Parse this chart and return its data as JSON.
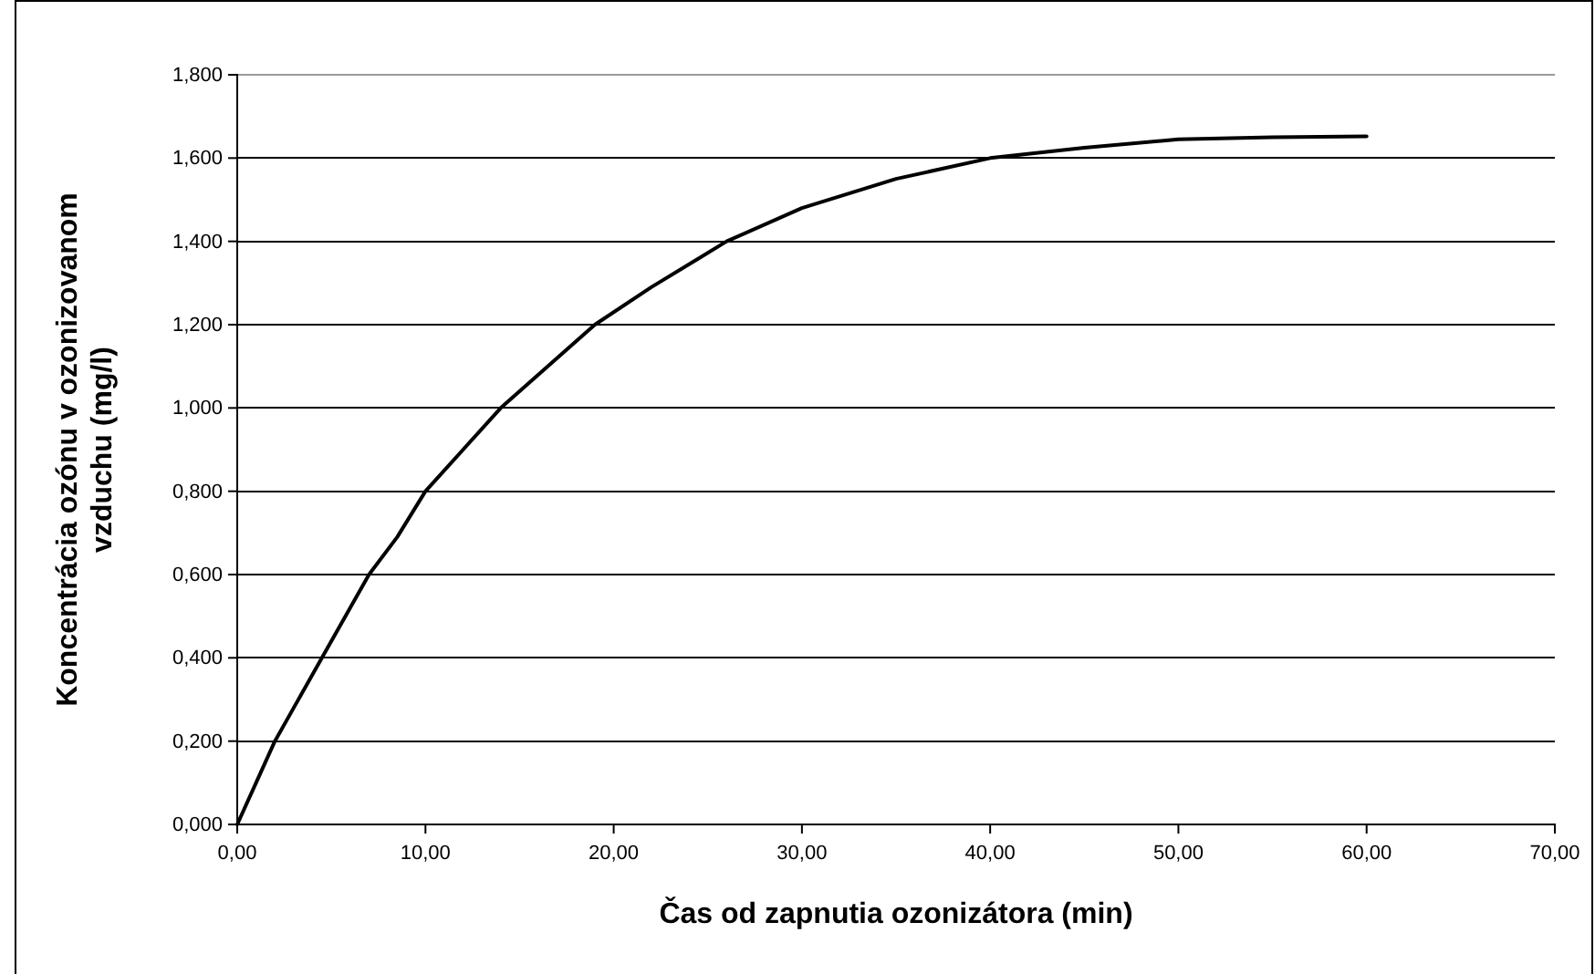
{
  "chart_data": {
    "type": "line",
    "xlabel": "Čas od zapnutia ozonizátora (min)",
    "ylabel": "Koncentrácia ozónu v ozonizovanom vzduchu (mg/l)",
    "x": [
      0,
      1,
      2,
      3,
      4.5,
      6,
      7,
      8.5,
      10,
      12,
      14,
      16,
      19,
      22,
      26,
      30,
      35,
      40,
      45,
      50,
      55,
      60
    ],
    "series": [
      {
        "color": "#000000",
        "values": [
          0,
          0.1,
          0.2,
          0.28,
          0.4,
          0.52,
          0.6,
          0.69,
          0.8,
          0.9,
          1.0,
          1.08,
          1.2,
          1.29,
          1.4,
          1.48,
          1.55,
          1.6,
          1.625,
          1.645,
          1.65,
          1.652
        ]
      }
    ],
    "xlim": [
      0,
      70
    ],
    "ylim": [
      0,
      1.8
    ],
    "xticks": [
      {
        "value": 0,
        "label": "0,00"
      },
      {
        "value": 10,
        "label": "10,00"
      },
      {
        "value": 20,
        "label": "20,00"
      },
      {
        "value": 30,
        "label": "30,00"
      },
      {
        "value": 40,
        "label": "40,00"
      },
      {
        "value": 50,
        "label": "50,00"
      },
      {
        "value": 60,
        "label": "60,00"
      },
      {
        "value": 70,
        "label": "70,00"
      }
    ],
    "yticks": [
      {
        "value": 0,
        "label": "0,000"
      },
      {
        "value": 0.2,
        "label": "0,200"
      },
      {
        "value": 0.4,
        "label": "0,400"
      },
      {
        "value": 0.6,
        "label": "0,600"
      },
      {
        "value": 0.8,
        "label": "0,800"
      },
      {
        "value": 1.0,
        "label": "1,000"
      },
      {
        "value": 1.2,
        "label": "1,200"
      },
      {
        "value": 1.4,
        "label": "1,400"
      },
      {
        "value": 1.6,
        "label": "1,600"
      },
      {
        "value": 1.8,
        "label": "1,800"
      }
    ],
    "grid": "y",
    "marker": "none",
    "line_style": "solid"
  }
}
